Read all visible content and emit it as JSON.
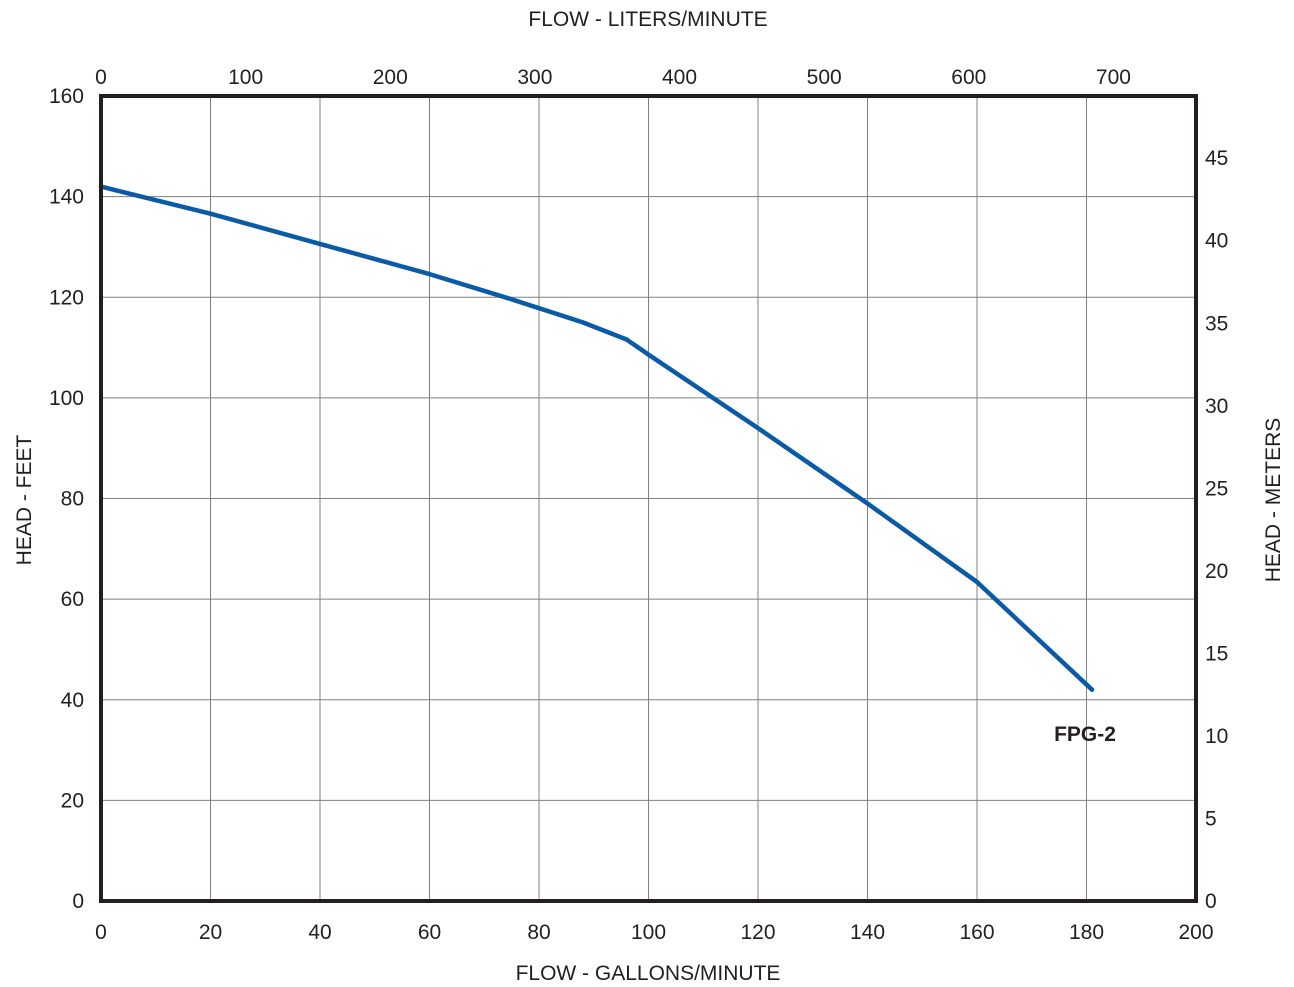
{
  "chart_data": {
    "type": "line",
    "x_axis_bottom": {
      "label": "FLOW - GALLONS/MINUTE",
      "range": [
        0,
        200
      ],
      "ticks": [
        0,
        20,
        40,
        60,
        80,
        100,
        120,
        140,
        160,
        180,
        200
      ]
    },
    "x_axis_top": {
      "label": "FLOW - LITERS/MINUTE",
      "ticks": [
        0,
        100,
        200,
        300,
        400,
        500,
        600,
        700
      ]
    },
    "y_axis_left": {
      "label": "HEAD - FEET",
      "range": [
        0,
        160
      ],
      "ticks": [
        0,
        20,
        40,
        60,
        80,
        100,
        120,
        140,
        160
      ]
    },
    "y_axis_right": {
      "label": "HEAD - METERS",
      "ticks": [
        0,
        5,
        10,
        15,
        20,
        25,
        30,
        35,
        40,
        45
      ]
    },
    "grid": true,
    "series": [
      {
        "name": "FPG-2",
        "color": "#0b5aa6",
        "x": [
          0,
          20,
          40,
          60,
          75,
          88,
          96,
          100,
          120,
          140,
          160,
          181
        ],
        "y": [
          142,
          136.6,
          130.6,
          124.6,
          119.6,
          115,
          111.6,
          108.6,
          94,
          79,
          63.4,
          42
        ]
      }
    ]
  }
}
